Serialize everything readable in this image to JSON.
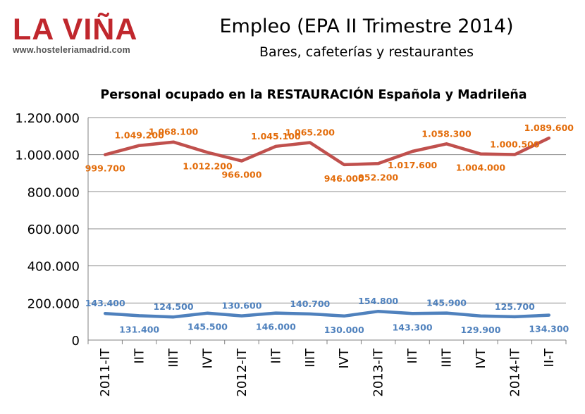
{
  "logo": {
    "brand": "LA VIÑA",
    "website": "www.hosteleriamadrid.com",
    "brand_color": "#c0272d"
  },
  "header": {
    "title": "Empleo (EPA II Trimestre 2014)",
    "subtitle": "Bares, cafeterías y restaurantes"
  },
  "chart_data": {
    "type": "line",
    "title": "Personal ocupado en la RESTAURACIÓN Española y Madrileña",
    "xlabel": "",
    "ylabel": "",
    "ylim": [
      0,
      1200000
    ],
    "yticks": [
      "0",
      "200.000",
      "400.000",
      "600.000",
      "800.000",
      "1.000.000",
      "1.200.000"
    ],
    "grid": true,
    "legend": "none",
    "categories": [
      "2011-IT",
      "IIT",
      "IIIT",
      "IVT",
      "2012-IT",
      "IIT",
      "IIIT",
      "IVT",
      "2013-IT",
      "IIT",
      "IIIT",
      "IVT",
      "2014-IT",
      "II-T"
    ],
    "series": [
      {
        "color": "#c0504d",
        "label_color": "#e36c0a",
        "values": [
          999700,
          1049200,
          1068100,
          1012200,
          966000,
          1045100,
          1065200,
          946000,
          952200,
          1017600,
          1058300,
          1004000,
          1000500,
          1089600
        ],
        "labels": [
          "999.700",
          "1.049.200",
          "1.068.100",
          "1.012.200",
          "966.000",
          "1.045.100",
          "1.065.200",
          "946.000",
          "952.200",
          "1.017.600",
          "1.058.300",
          "1.004.000",
          "1.000.500",
          "1.089.600"
        ],
        "label_pos": [
          "below",
          "above",
          "above",
          "below",
          "below",
          "above",
          "above",
          "below",
          "below",
          "below",
          "above",
          "below",
          "above",
          "above"
        ]
      },
      {
        "color": "#4f81bd",
        "label_color": "#4f81bd",
        "values": [
          143400,
          131400,
          124500,
          145500,
          130600,
          146000,
          140700,
          130000,
          154800,
          143300,
          145900,
          129900,
          125700,
          134300
        ],
        "labels": [
          "143.400",
          "131.400",
          "124.500",
          "145.500",
          "130.600",
          "146.000",
          "140.700",
          "130.000",
          "154.800",
          "143.300",
          "145.900",
          "129.900",
          "125.700",
          "134.300"
        ],
        "label_pos": [
          "above",
          "below",
          "above",
          "below",
          "above",
          "below",
          "above",
          "below",
          "above",
          "below",
          "above",
          "below",
          "above",
          "below"
        ]
      }
    ]
  }
}
